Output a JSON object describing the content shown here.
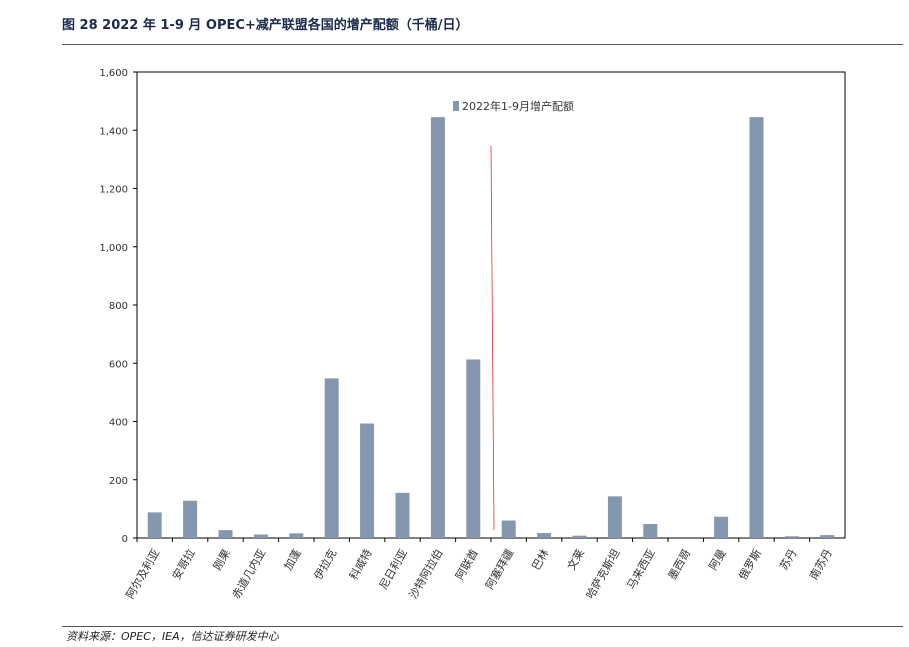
{
  "header": {
    "title": "图 28  2022 年 1-9 月 OPEC+减产联盟各国的增产配额（千桶/日）"
  },
  "footer": {
    "source": "资料来源：OPEC，IEA，信达证券研发中心"
  },
  "colors": {
    "bar": "#8597AE",
    "axis": "#000000",
    "annotation_line": "#E03030"
  },
  "chart_data": {
    "type": "bar",
    "title": "",
    "xlabel": "",
    "ylabel": "",
    "ylim": [
      0,
      1600
    ],
    "yticks": [
      0,
      200,
      400,
      600,
      800,
      1000,
      1200,
      1400,
      1600
    ],
    "ytick_labels": [
      "0",
      "200",
      "400",
      "600",
      "800",
      "1,000",
      "1,200",
      "1,400",
      "1,600"
    ],
    "grid": false,
    "legend_position": "top-center",
    "categories": [
      "阿尔及利亚",
      "安哥拉",
      "刚果",
      "赤道几内亚",
      "加蓬",
      "伊拉克",
      "科威特",
      "尼日利亚",
      "沙特阿拉伯",
      "阿联酋",
      "阿塞拜疆",
      "巴林",
      "文莱",
      "哈萨克斯坦",
      "马来西亚",
      "墨西哥",
      "阿曼",
      "俄罗斯",
      "苏丹",
      "南苏丹"
    ],
    "series": [
      {
        "name": "2022年1-9月增产配额",
        "values": [
          88,
          128,
          27,
          12,
          16,
          548,
          393,
          155,
          1445,
          613,
          60,
          17,
          8,
          143,
          48,
          0,
          73,
          1445,
          6,
          10
        ]
      }
    ]
  }
}
